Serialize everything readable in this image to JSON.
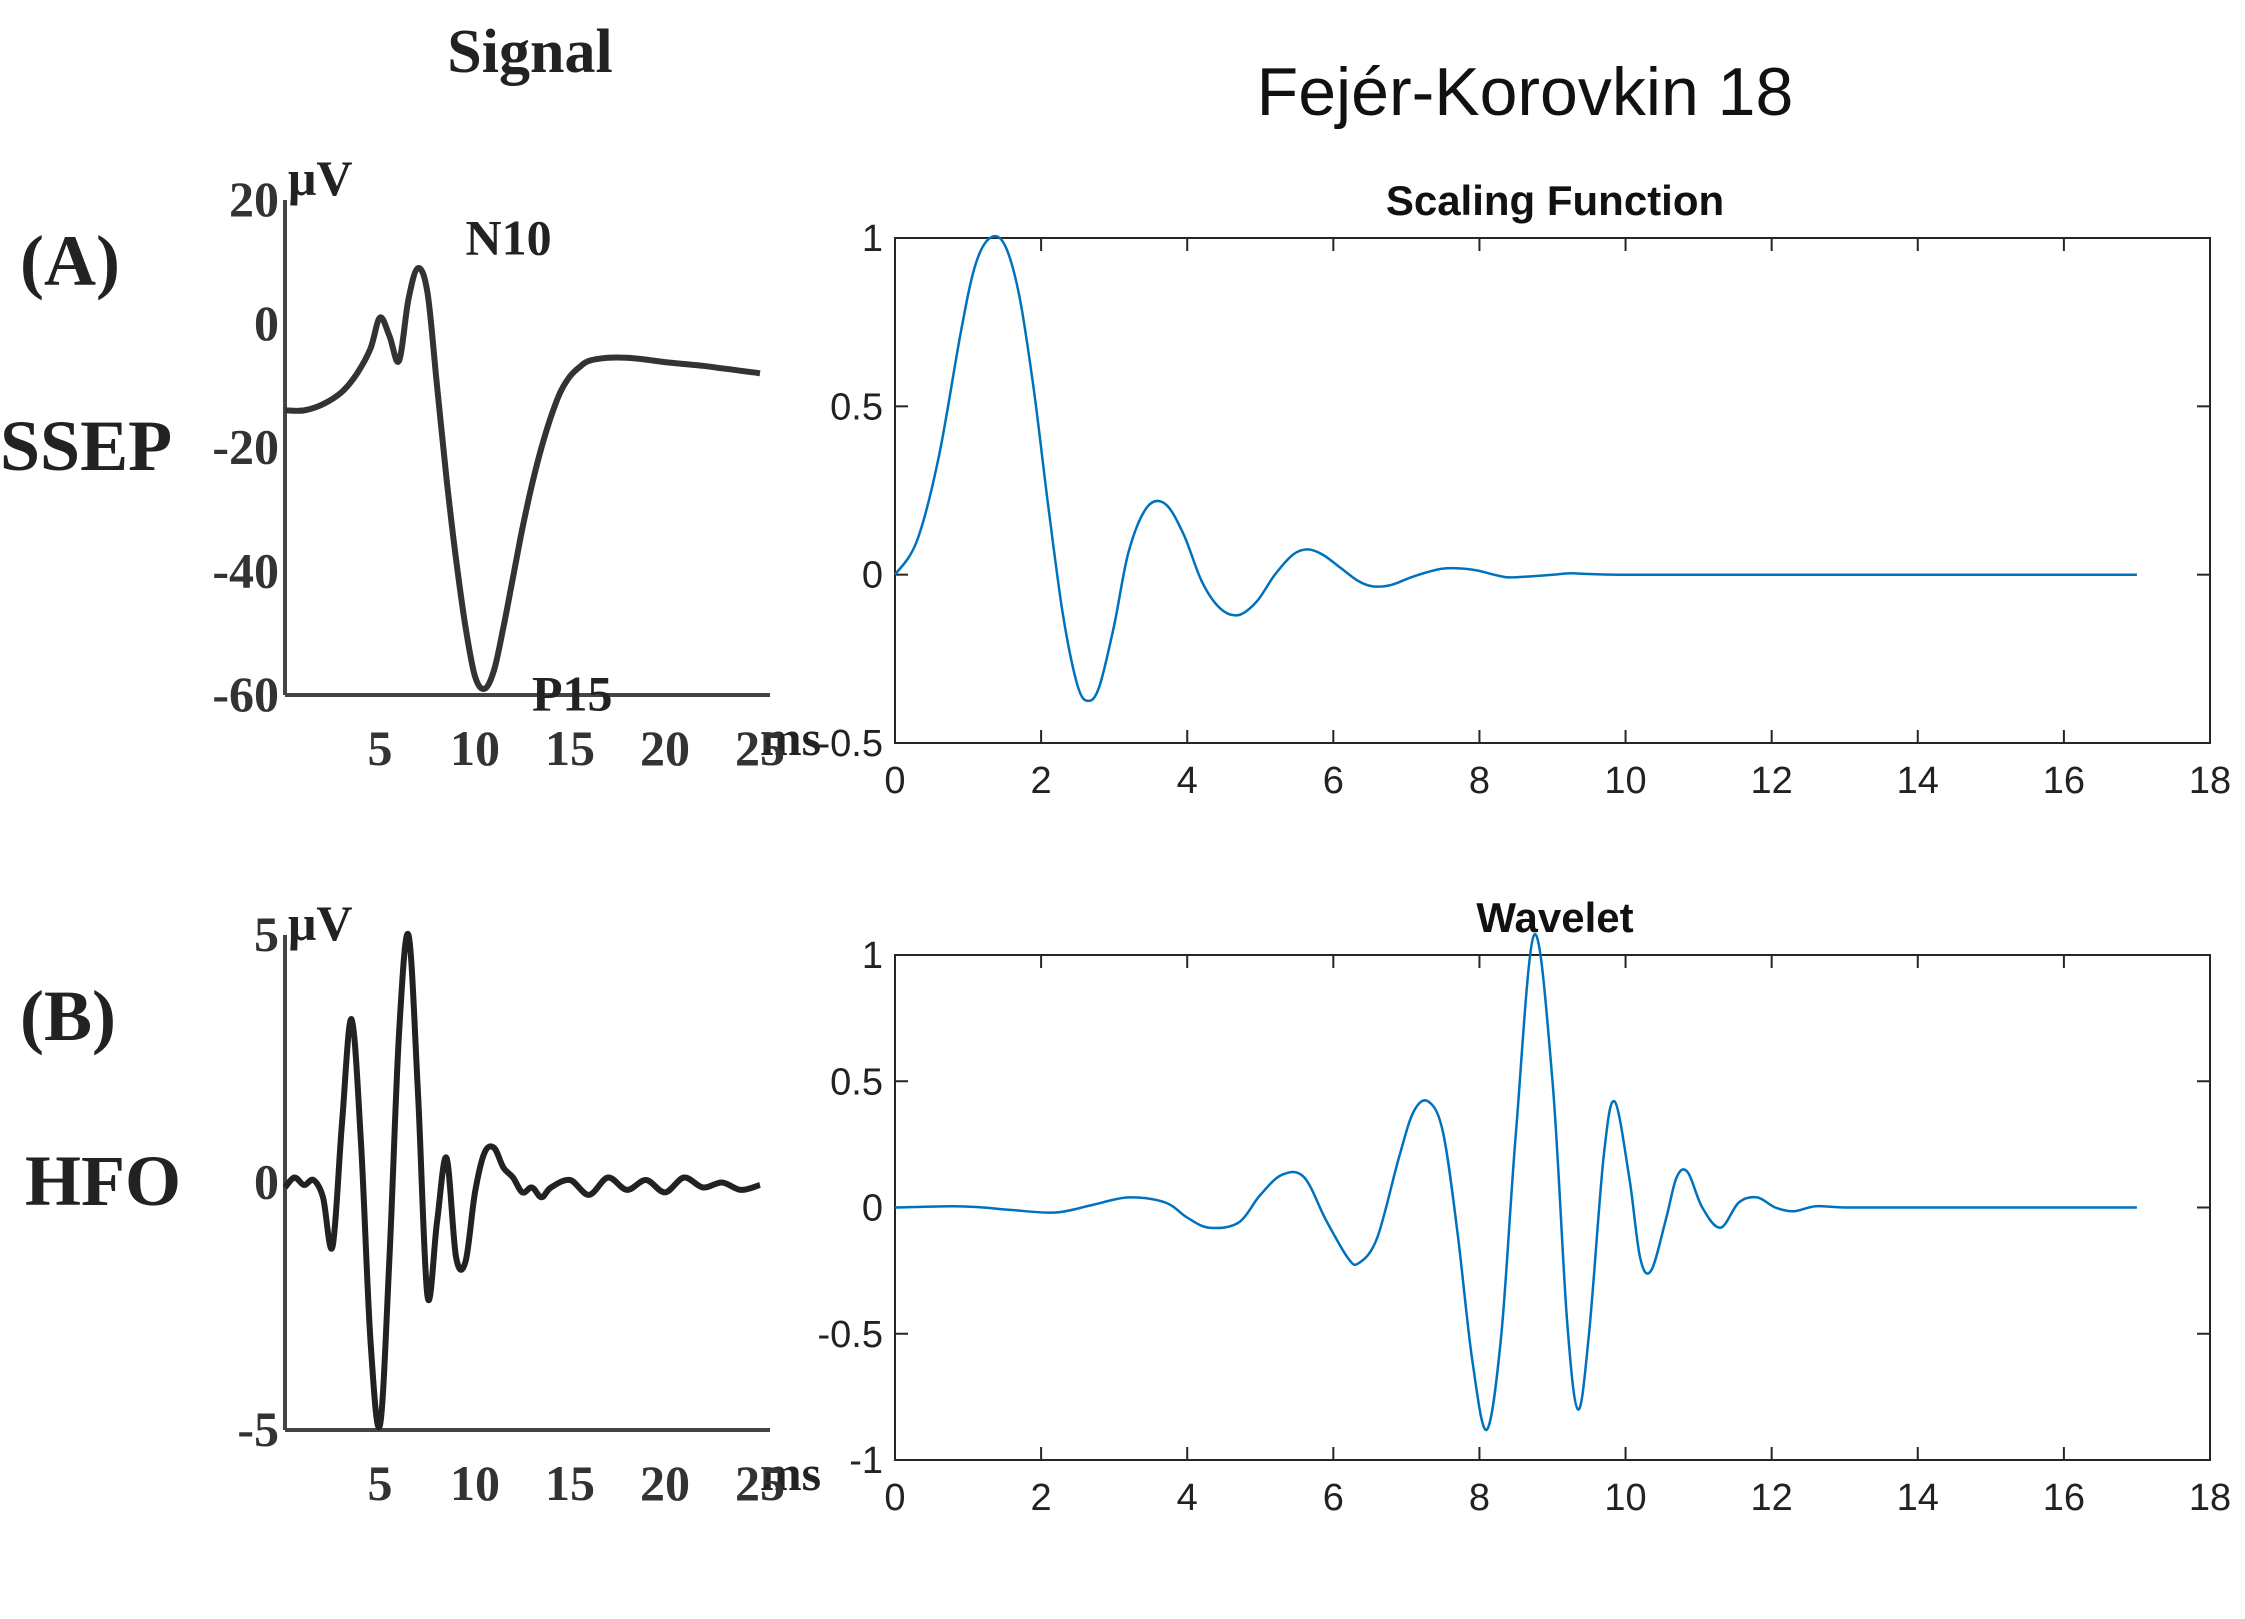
{
  "left_panel": {
    "column_title": "Signal",
    "panels": [
      {
        "tag": "(A)",
        "name": "SSEP",
        "unit": "μV",
        "x_unit": "ms",
        "x_ticks": [
          5,
          10,
          15,
          20,
          25
        ],
        "y_ticks": [
          20,
          0,
          -20,
          -40,
          -60
        ],
        "annotations": [
          {
            "text": "N10",
            "x": 9.5,
            "y": 8
          },
          {
            "text": "P15",
            "x": 13,
            "y": -58
          }
        ],
        "xlim": [
          0,
          25
        ],
        "ylim": [
          -60,
          20
        ],
        "series": {
          "x": [
            0,
            1,
            2,
            3,
            3.8,
            4.5,
            5,
            5.5,
            6,
            6.5,
            7,
            7.5,
            8,
            8.5,
            9,
            9.5,
            10,
            10.5,
            11,
            11.5,
            12,
            12.5,
            13,
            13.5,
            14,
            14.5,
            15,
            15.5,
            16,
            17,
            18,
            19,
            20,
            21,
            22,
            23,
            24,
            25
          ],
          "y": [
            -14,
            -14,
            -13,
            -11,
            -8,
            -4,
            1,
            -2,
            -6,
            4,
            9,
            5,
            -10,
            -25,
            -38,
            -49,
            -57,
            -59,
            -56,
            -49,
            -41,
            -33,
            -26,
            -20,
            -15,
            -11,
            -8.5,
            -7,
            -6,
            -5.5,
            -5.5,
            -5.8,
            -6.2,
            -6.5,
            -6.8,
            -7.2,
            -7.6,
            -8
          ]
        }
      },
      {
        "tag": "(B)",
        "name": "HFO",
        "unit": "μV",
        "x_unit": "ms",
        "x_ticks": [
          5,
          10,
          15,
          20,
          25
        ],
        "y_ticks": [
          5,
          0,
          -5
        ],
        "annotations": [],
        "xlim": [
          0,
          25
        ],
        "ylim": [
          -5,
          5
        ],
        "series": {
          "x": [
            0,
            0.5,
            1,
            1.5,
            2,
            2.5,
            3,
            3.5,
            4,
            4.5,
            5,
            5.5,
            6,
            6.5,
            7,
            7.5,
            8,
            8.5,
            9,
            9.5,
            10,
            10.5,
            11,
            11.5,
            12,
            12.5,
            13,
            13.5,
            14,
            15,
            16,
            17,
            18,
            19,
            20,
            21,
            22,
            23,
            24,
            25
          ],
          "y": [
            -0.1,
            0.1,
            -0.05,
            0.05,
            -0.3,
            -1.3,
            1.2,
            3.3,
            0.8,
            -3.2,
            -4.9,
            -1.5,
            3.0,
            5.0,
            1.8,
            -2.3,
            -0.8,
            0.5,
            -1.5,
            -1.6,
            -0.2,
            0.6,
            0.7,
            0.3,
            0.1,
            -0.2,
            -0.1,
            -0.3,
            -0.1,
            0.05,
            -0.25,
            0.1,
            -0.15,
            0.05,
            -0.2,
            0.1,
            -0.1,
            0.0,
            -0.15,
            -0.05
          ]
        }
      }
    ]
  },
  "right_panel": {
    "figure_title": "Fejér-Korovkin 18"
  },
  "chart_data": [
    {
      "type": "line",
      "title": "Scaling Function",
      "xlabel": "",
      "ylabel": "",
      "xlim": [
        0,
        18
      ],
      "ylim": [
        -0.5,
        1
      ],
      "x_ticks": [
        0,
        2,
        4,
        6,
        8,
        10,
        12,
        14,
        16,
        18
      ],
      "y_ticks": [
        "-0.5",
        "0",
        "0.5",
        "1"
      ],
      "grid": false,
      "color": "#0072BD",
      "series": [
        {
          "x": [
            0,
            0.3,
            0.6,
            0.9,
            1.1,
            1.3,
            1.5,
            1.7,
            1.9,
            2.1,
            2.3,
            2.5,
            2.65,
            2.8,
            3.0,
            3.2,
            3.45,
            3.7,
            3.95,
            4.2,
            4.45,
            4.7,
            4.95,
            5.2,
            5.45,
            5.65,
            5.85,
            6.1,
            6.35,
            6.55,
            6.8,
            7.1,
            7.5,
            7.9,
            8.2,
            8.4,
            8.7,
            9.0,
            9.25,
            9.5,
            10,
            11,
            12,
            13,
            14,
            15,
            16,
            17
          ],
          "y": [
            0,
            0.1,
            0.35,
            0.72,
            0.92,
            1.0,
            0.98,
            0.83,
            0.55,
            0.2,
            -0.12,
            -0.33,
            -0.375,
            -0.33,
            -0.15,
            0.07,
            0.2,
            0.21,
            0.12,
            -0.02,
            -0.1,
            -0.12,
            -0.08,
            0.0,
            0.06,
            0.075,
            0.06,
            0.02,
            -0.02,
            -0.035,
            -0.03,
            -0.005,
            0.018,
            0.015,
            0.0,
            -0.008,
            -0.005,
            0.0,
            0.004,
            0.002,
            0.0,
            0.0,
            0.0,
            0.0,
            0.0,
            0.0,
            0.0,
            0.0
          ]
        }
      ]
    },
    {
      "type": "line",
      "title": "Wavelet",
      "xlabel": "",
      "ylabel": "",
      "xlim": [
        0,
        18
      ],
      "ylim": [
        -1,
        1
      ],
      "x_ticks": [
        0,
        2,
        4,
        6,
        8,
        10,
        12,
        14,
        16,
        18
      ],
      "y_ticks": [
        "-1",
        "-0.5",
        "0",
        "0.5",
        "1"
      ],
      "grid": false,
      "color": "#0072BD",
      "series": [
        {
          "x": [
            0,
            0.8,
            1.2,
            1.6,
            2.2,
            2.7,
            3.2,
            3.7,
            4.0,
            4.3,
            4.7,
            5.0,
            5.3,
            5.6,
            5.9,
            6.2,
            6.35,
            6.6,
            6.9,
            7.1,
            7.3,
            7.5,
            7.7,
            7.9,
            8.1,
            8.3,
            8.5,
            8.75,
            9.0,
            9.2,
            9.35,
            9.5,
            9.7,
            9.85,
            10.05,
            10.2,
            10.35,
            10.55,
            10.7,
            10.85,
            11.05,
            11.3,
            11.55,
            11.8,
            12.05,
            12.3,
            12.6,
            13.0,
            14,
            15,
            16,
            17
          ],
          "y": [
            0,
            0.005,
            0.0,
            -0.01,
            -0.02,
            0.01,
            0.04,
            0.02,
            -0.04,
            -0.08,
            -0.06,
            0.05,
            0.13,
            0.12,
            -0.05,
            -0.2,
            -0.22,
            -0.12,
            0.2,
            0.38,
            0.42,
            0.3,
            -0.1,
            -0.6,
            -0.88,
            -0.5,
            0.3,
            1.08,
            0.5,
            -0.45,
            -0.8,
            -0.5,
            0.2,
            0.42,
            0.12,
            -0.2,
            -0.25,
            -0.05,
            0.12,
            0.14,
            0.0,
            -0.08,
            0.02,
            0.04,
            0.0,
            -0.015,
            0.005,
            0.0,
            0.0,
            0.0,
            0.0,
            0.0
          ]
        }
      ]
    }
  ]
}
